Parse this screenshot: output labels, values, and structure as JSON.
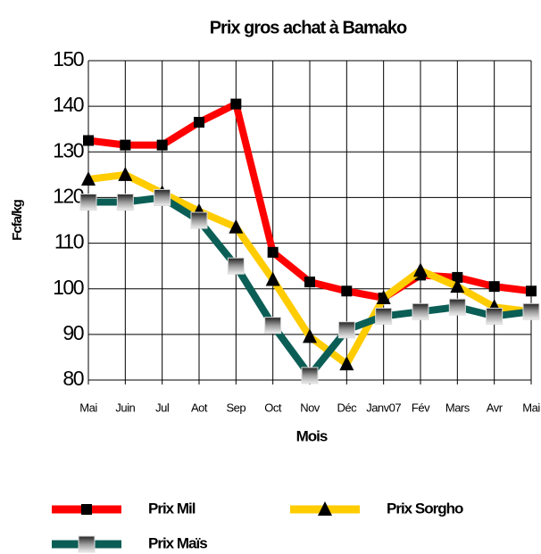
{
  "chart_data": {
    "type": "line",
    "title": "Prix  gros achat à Bamako",
    "x_label": "Mois",
    "y_label": "Fcfa/kg",
    "categories": [
      "Mai",
      "Juin",
      "Jul",
      "Aot",
      "Sep",
      "Oct",
      "Nov",
      "Déc",
      "Janv07",
      "Fév",
      "Mars",
      "Avr",
      "Mai"
    ],
    "ylim": [
      80,
      150
    ],
    "yticks": [
      80,
      90,
      100,
      110,
      120,
      130,
      140,
      150
    ],
    "grid": true,
    "legend": "bottom",
    "series": [
      {
        "name": "Prix Mil",
        "color": "#ff0000",
        "marker": "square",
        "values": [
          132.5,
          131.5,
          131.5,
          136.5,
          140.5,
          108,
          101.5,
          99.5,
          98,
          103,
          102.5,
          100.5,
          99.5
        ]
      },
      {
        "name": "Prix Sorgho",
        "color": "#ffcc00",
        "marker": "triangle",
        "values": [
          124,
          125,
          121,
          117,
          113.5,
          102,
          89.5,
          83.5,
          98,
          104,
          100.5,
          96,
          95
        ]
      },
      {
        "name": "Prix Maïs",
        "color": "#0b5e55",
        "marker": "gray-square",
        "values": [
          119,
          119,
          120,
          115,
          105,
          92,
          81,
          91,
          94,
          95,
          96,
          94,
          95
        ]
      }
    ]
  }
}
